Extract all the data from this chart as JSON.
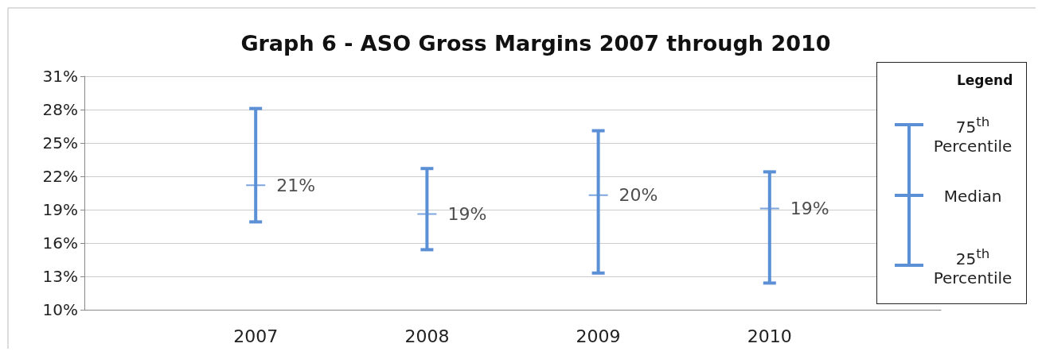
{
  "chart_data": {
    "type": "scatter",
    "title": "Graph 6 - ASO Gross Margins 2007 through 2010",
    "categories": [
      "2007",
      "2008",
      "2009",
      "2010"
    ],
    "series": [
      {
        "color": "#5b8fd6",
        "values": [
          21.2,
          18.6,
          20.3,
          19.1
        ],
        "errors": [
          [
            17.9,
            28.1
          ],
          [
            15.4,
            22.7
          ],
          [
            13.3,
            26.1
          ],
          [
            12.4,
            22.4
          ]
        ],
        "value_labels": [
          "21%",
          "19%",
          "20%",
          "19%"
        ]
      }
    ],
    "ylim": [
      10,
      31
    ],
    "yticks": [
      {
        "value": 10,
        "label": "10%"
      },
      {
        "value": 13,
        "label": "13%"
      },
      {
        "value": 16,
        "label": "16%"
      },
      {
        "value": 19,
        "label": "19%"
      },
      {
        "value": 22,
        "label": "22%"
      },
      {
        "value": 25,
        "label": "25%"
      },
      {
        "value": 28,
        "label": "28%"
      },
      {
        "value": 31,
        "label": "31%"
      }
    ],
    "grid": "y",
    "marker": "cross",
    "legend_title": "Legend",
    "annotations": [
      "75$^{th}$ Percentile",
      "Median",
      "25$^{th}$ Percentile"
    ]
  }
}
